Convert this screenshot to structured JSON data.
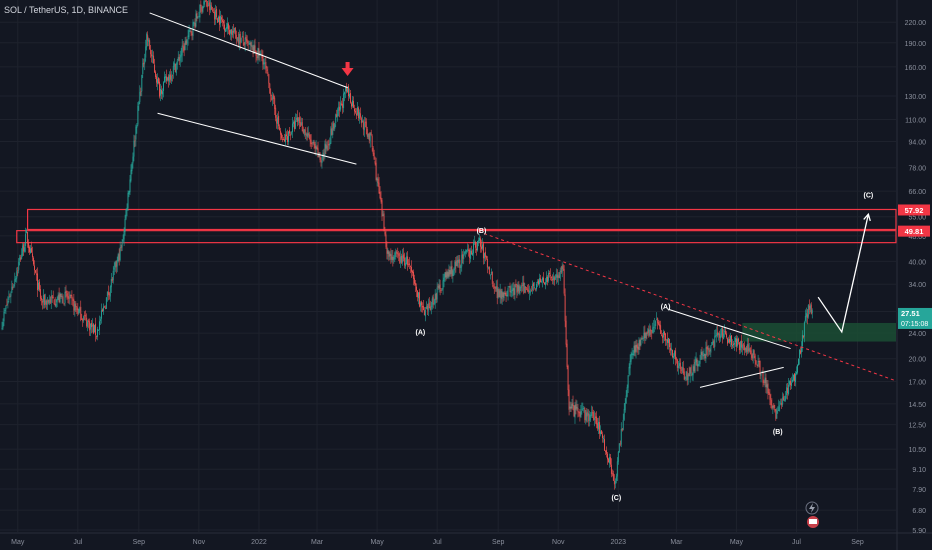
{
  "header": {
    "title": "SOL / TetherUS, 1D, BINANCE"
  },
  "colors": {
    "background": "#131722",
    "grid": "#1e222d",
    "up": "#26a69a",
    "down": "#ef5350",
    "axis_text": "#8a8f9c",
    "resistance": "#f23645",
    "support_zone": "#1b4d34",
    "trend_dashed": "#f23645",
    "drawing_white": "#ffffff",
    "price_tag": "#26a69a"
  },
  "chart_data": {
    "type": "candlestick",
    "symbol": "SOL / TetherUS",
    "interval": "1D",
    "exchange": "BINANCE",
    "y_scale": "log",
    "ylim": [
      5.5,
      240
    ],
    "y_ticks": [
      "220.00",
      "190.00",
      "160.00",
      "130.00",
      "110.00",
      "94.00",
      "78.00",
      "66.00",
      "55.00",
      "48.00",
      "40.00",
      "34.00",
      "28.00",
      "24.00",
      "20.00",
      "17.00",
      "14.50",
      "12.50",
      "10.50",
      "9.10",
      "7.90",
      "6.80",
      "5.90"
    ],
    "x_ticks": [
      "May",
      "Jul",
      "Sep",
      "Nov",
      "2022",
      "Mar",
      "May",
      "Jul",
      "Sep",
      "Nov",
      "2023",
      "Mar",
      "May",
      "Jul",
      "Sep"
    ],
    "price_series": {
      "name": "SOL / TetherUS",
      "anchors": [
        {
          "date": "2021-04-15",
          "price": 26
        },
        {
          "date": "2021-05-10",
          "price": 48
        },
        {
          "date": "2021-05-25",
          "price": 30
        },
        {
          "date": "2021-06-20",
          "price": 31
        },
        {
          "date": "2021-07-20",
          "price": 24
        },
        {
          "date": "2021-08-15",
          "price": 45
        },
        {
          "date": "2021-09-09",
          "price": 200
        },
        {
          "date": "2021-09-22",
          "price": 135
        },
        {
          "date": "2021-10-10",
          "price": 165
        },
        {
          "date": "2021-11-06",
          "price": 255
        },
        {
          "date": "2021-12-01",
          "price": 210
        },
        {
          "date": "2022-01-05",
          "price": 170
        },
        {
          "date": "2022-01-25",
          "price": 93
        },
        {
          "date": "2022-02-10",
          "price": 110
        },
        {
          "date": "2022-03-05",
          "price": 82
        },
        {
          "date": "2022-03-31",
          "price": 135
        },
        {
          "date": "2022-04-25",
          "price": 95
        },
        {
          "date": "2022-05-12",
          "price": 42
        },
        {
          "date": "2022-06-01",
          "price": 40
        },
        {
          "date": "2022-06-18",
          "price": 27
        },
        {
          "date": "2022-07-10",
          "price": 36
        },
        {
          "date": "2022-08-13",
          "price": 46
        },
        {
          "date": "2022-08-31",
          "price": 32
        },
        {
          "date": "2022-09-30",
          "price": 33
        },
        {
          "date": "2022-11-06",
          "price": 37
        },
        {
          "date": "2022-11-12",
          "price": 14
        },
        {
          "date": "2022-12-10",
          "price": 13
        },
        {
          "date": "2022-12-29",
          "price": 8.3
        },
        {
          "date": "2023-01-14",
          "price": 21
        },
        {
          "date": "2023-02-10",
          "price": 26
        },
        {
          "date": "2023-03-10",
          "price": 17.5
        },
        {
          "date": "2023-04-15",
          "price": 24
        },
        {
          "date": "2023-05-20",
          "price": 20.5
        },
        {
          "date": "2023-06-10",
          "price": 13.5
        },
        {
          "date": "2023-06-30",
          "price": 18
        },
        {
          "date": "2023-07-13",
          "price": 29
        },
        {
          "date": "2023-07-17",
          "price": 27.51
        }
      ]
    },
    "levels": [
      {
        "name": "resistance-high",
        "value": 57.92,
        "label": "57.92"
      },
      {
        "name": "resistance-low",
        "value": 49.81,
        "label": "49.81"
      }
    ],
    "support_zone": {
      "from": 22.6,
      "to": 25.8
    },
    "last_price": {
      "value": "27.51",
      "countdown": "07:15:08"
    },
    "wave_labels": [
      {
        "text": "(A)",
        "date": "2022-06-14",
        "price": 23.8
      },
      {
        "text": "(B)",
        "date": "2022-08-15",
        "price": 49
      },
      {
        "text": "(C)",
        "date": "2022-12-30",
        "price": 7.3
      },
      {
        "text": "(A)",
        "date": "2023-02-18",
        "price": 28.5
      },
      {
        "text": "(B)",
        "date": "2023-06-12",
        "price": 11.7
      },
      {
        "text": "(C)",
        "date": "2023-09-12",
        "price": 63
      }
    ],
    "drawings": {
      "upper_channel": [
        {
          "date": "2021-09-12",
          "price": 235
        },
        {
          "date": "2022-04-01",
          "price": 138
        }
      ],
      "lower_channel": [
        {
          "date": "2021-09-20",
          "price": 115
        },
        {
          "date": "2022-04-10",
          "price": 80
        }
      ],
      "dashed_trendline": [
        {
          "date": "2022-08-12",
          "price": 49.5
        },
        {
          "date": "2023-11-05",
          "price": 16
        }
      ],
      "triangle_upper": [
        {
          "date": "2023-02-20",
          "price": 28.5
        },
        {
          "date": "2023-06-25",
          "price": 21.5
        }
      ],
      "triangle_lower": [
        {
          "date": "2023-03-25",
          "price": 16.3
        },
        {
          "date": "2023-06-18",
          "price": 18.8
        }
      ],
      "projection_path": [
        {
          "date": "2023-07-23",
          "price": 31
        },
        {
          "date": "2023-08-16",
          "price": 24.2
        },
        {
          "date": "2023-09-12",
          "price": 56
        }
      ]
    }
  },
  "overlay": {
    "arrow_down_icon": "arrow-down",
    "lightning_icon": "lightning",
    "flag_icon": "flag"
  }
}
